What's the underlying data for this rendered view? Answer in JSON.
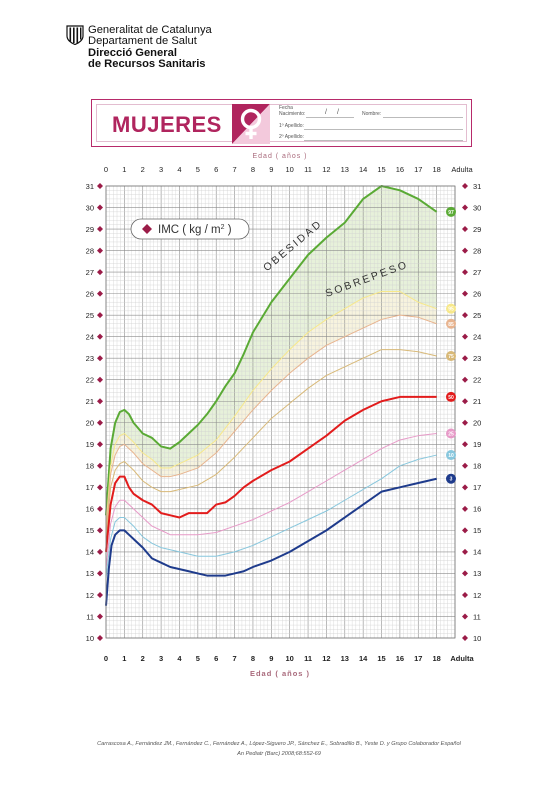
{
  "header": {
    "line1": "Generalitat de Catalunya",
    "line2": "Departament de Salut",
    "line3": "Direcció General",
    "line4": "de Recursos Sanitaris"
  },
  "form": {
    "title": "MUJERES",
    "fecha_label": "Fecha",
    "nacimiento_label": "Nacimiento:",
    "date_sep": "/",
    "nombre_label": "Nombre:",
    "apellido1_label": "1º Apellido:",
    "apellido2_label": "2º Apellido:"
  },
  "chart_data": {
    "type": "line",
    "xlabel_top": "Edad ( años )",
    "xlabel_bottom": "Edad ( años )",
    "legend_label": "IMC ( kg / m",
    "legend_sup": "2",
    "legend_close": " )",
    "zone_labels": [
      "OBESIDAD",
      "SOBREPESO"
    ],
    "xlim": [
      0,
      19
    ],
    "ylim": [
      10,
      31
    ],
    "x_ticks": [
      0,
      1,
      2,
      3,
      4,
      5,
      6,
      7,
      8,
      9,
      10,
      11,
      12,
      13,
      14,
      15,
      16,
      17,
      18
    ],
    "x_end_label": "Adulta",
    "y_ticks": [
      10,
      11,
      12,
      13,
      14,
      15,
      16,
      17,
      18,
      19,
      20,
      21,
      22,
      23,
      24,
      25,
      26,
      27,
      28,
      29,
      30,
      31
    ],
    "grid": true,
    "series": [
      {
        "name": "97",
        "color": "#5aaa35",
        "width": 2.0,
        "x": [
          0,
          0.25,
          0.5,
          0.75,
          1,
          1.25,
          1.5,
          2,
          2.5,
          3,
          3.5,
          4,
          4.5,
          5,
          5.5,
          6,
          6.5,
          7,
          7.5,
          8,
          9,
          10,
          11,
          12,
          13,
          14,
          15,
          16,
          17,
          18
        ],
        "y": [
          15.7,
          18.8,
          20.0,
          20.5,
          20.6,
          20.4,
          20.0,
          19.5,
          19.3,
          18.9,
          18.8,
          19.1,
          19.5,
          19.9,
          20.4,
          21.0,
          21.7,
          22.3,
          23.2,
          24.2,
          25.6,
          26.7,
          27.8,
          28.6,
          29.3,
          30.4,
          31.0,
          30.8,
          30.4,
          29.8
        ]
      },
      {
        "name": "95",
        "color": "#f7e88a",
        "width": 1.0,
        "x": [
          0,
          0.25,
          0.5,
          0.75,
          1,
          1.5,
          2,
          2.5,
          3,
          3.5,
          4,
          5,
          6,
          7,
          8,
          9,
          10,
          11,
          12,
          13,
          14,
          15,
          16,
          17,
          18
        ],
        "y": [
          15.2,
          18.0,
          19.0,
          19.4,
          19.5,
          19.1,
          18.6,
          18.3,
          17.9,
          17.9,
          18.1,
          18.5,
          19.2,
          20.3,
          21.5,
          22.5,
          23.4,
          24.2,
          24.8,
          25.3,
          25.8,
          26.1,
          26.1,
          25.6,
          25.3
        ]
      },
      {
        "name": "85",
        "color": "#e8b48f",
        "width": 1.0,
        "x": [
          0,
          0.25,
          0.5,
          0.75,
          1,
          1.5,
          2,
          2.5,
          3,
          3.5,
          4,
          5,
          6,
          7,
          8,
          9,
          10,
          11,
          12,
          13,
          14,
          15,
          16,
          17,
          18
        ],
        "y": [
          14.9,
          17.6,
          18.5,
          18.9,
          19.0,
          18.6,
          18.1,
          17.8,
          17.5,
          17.5,
          17.6,
          17.9,
          18.6,
          19.6,
          20.6,
          21.5,
          22.3,
          23.0,
          23.6,
          24.0,
          24.4,
          24.8,
          25.0,
          24.9,
          24.6
        ]
      },
      {
        "name": "75",
        "color": "#d8b978",
        "width": 1.0,
        "x": [
          0,
          0.25,
          0.5,
          0.75,
          1,
          1.5,
          2,
          2.5,
          3,
          3.5,
          4,
          5,
          6,
          7,
          8,
          9,
          10,
          11,
          12,
          13,
          14,
          15,
          16,
          17,
          18
        ],
        "y": [
          14.6,
          17.0,
          17.8,
          18.1,
          18.2,
          17.8,
          17.3,
          17.0,
          16.8,
          16.8,
          16.9,
          17.1,
          17.6,
          18.4,
          19.3,
          20.2,
          20.9,
          21.6,
          22.2,
          22.6,
          23.0,
          23.4,
          23.4,
          23.3,
          23.1
        ]
      },
      {
        "name": "50",
        "color": "#e21c1c",
        "width": 2.0,
        "x": [
          0,
          0.25,
          0.5,
          0.75,
          1,
          1.25,
          1.5,
          2,
          2.5,
          3,
          3.5,
          4,
          4.5,
          5,
          5.5,
          6,
          6.5,
          7,
          7.5,
          8,
          9,
          10,
          11,
          12,
          13,
          14,
          15,
          16,
          17,
          18
        ],
        "y": [
          14.0,
          16.2,
          17.2,
          17.5,
          17.5,
          17.0,
          16.7,
          16.4,
          16.2,
          15.8,
          15.7,
          15.6,
          15.8,
          15.8,
          15.8,
          16.2,
          16.3,
          16.6,
          17.0,
          17.3,
          17.8,
          18.2,
          18.8,
          19.4,
          20.1,
          20.6,
          21.0,
          21.2,
          21.2,
          21.2
        ]
      },
      {
        "name": "25",
        "color": "#e79ac8",
        "width": 1.0,
        "x": [
          0,
          0.25,
          0.5,
          0.75,
          1,
          1.5,
          2,
          2.5,
          3,
          3.5,
          4,
          5,
          6,
          7,
          8,
          9,
          10,
          11,
          12,
          13,
          14,
          15,
          16,
          17,
          18
        ],
        "y": [
          13.2,
          15.3,
          16.1,
          16.4,
          16.4,
          16.0,
          15.6,
          15.2,
          15.0,
          14.8,
          14.8,
          14.8,
          14.9,
          15.2,
          15.5,
          15.9,
          16.3,
          16.8,
          17.3,
          17.8,
          18.3,
          18.8,
          19.2,
          19.4,
          19.5
        ]
      },
      {
        "name": "10",
        "color": "#88c7dd",
        "width": 1.0,
        "x": [
          0,
          0.25,
          0.5,
          0.75,
          1,
          1.5,
          2,
          2.5,
          3,
          3.5,
          4,
          5,
          6,
          7,
          8,
          9,
          10,
          11,
          12,
          13,
          14,
          15,
          16,
          17,
          18
        ],
        "y": [
          12.8,
          14.6,
          15.4,
          15.6,
          15.6,
          15.2,
          14.7,
          14.4,
          14.2,
          14.1,
          14.0,
          13.8,
          13.8,
          14.0,
          14.3,
          14.7,
          15.1,
          15.5,
          15.9,
          16.4,
          16.9,
          17.4,
          18.0,
          18.3,
          18.5
        ]
      },
      {
        "name": "3",
        "color": "#1e3b8c",
        "width": 2.0,
        "x": [
          0,
          0.15,
          0.3,
          0.5,
          0.75,
          1,
          1.25,
          1.5,
          2,
          2.5,
          3,
          3.5,
          4,
          4.5,
          5,
          5.5,
          6,
          6.5,
          7,
          7.5,
          8,
          9,
          10,
          11,
          12,
          13,
          14,
          15,
          16,
          17,
          18
        ],
        "y": [
          11.5,
          13.2,
          14.3,
          14.8,
          15.0,
          15.0,
          14.8,
          14.6,
          14.2,
          13.7,
          13.5,
          13.3,
          13.2,
          13.1,
          13.0,
          12.9,
          12.9,
          12.9,
          13.0,
          13.1,
          13.3,
          13.6,
          14.0,
          14.5,
          15.0,
          15.6,
          16.2,
          16.8,
          17.0,
          17.2,
          17.4
        ]
      }
    ]
  },
  "citation": {
    "line1": "Carrascosa A., Fernández JM., Fernández C., Fernández A., López-Siguero JP., Sánchez E., Sobradillo B., Yeste D. y Grupo Colaborador Español",
    "line2": "An Pediatr (Barc) 2008;68:552-69"
  }
}
